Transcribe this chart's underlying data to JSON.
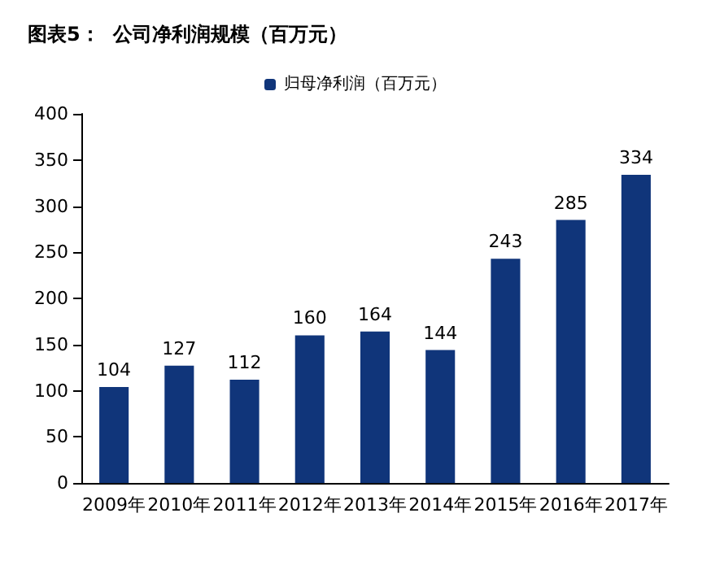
{
  "chart_data": {
    "type": "bar",
    "title": "图表5：  公司净利润规模（百万元）",
    "categories": [
      "2009年",
      "2010年",
      "2011年",
      "2012年",
      "2013年",
      "2014年",
      "2015年",
      "2016年",
      "2017年"
    ],
    "series": [
      {
        "name": "归母净利润（百万元）",
        "color": "#10357a",
        "values": [
          104,
          127,
          112,
          160,
          164,
          144,
          243,
          285,
          334
        ]
      }
    ],
    "ylim": [
      0,
      400
    ],
    "yticks": [
      0,
      50,
      100,
      150,
      200,
      250,
      300,
      350,
      400
    ],
    "grid": false,
    "legend": "top",
    "data_labels": true
  }
}
